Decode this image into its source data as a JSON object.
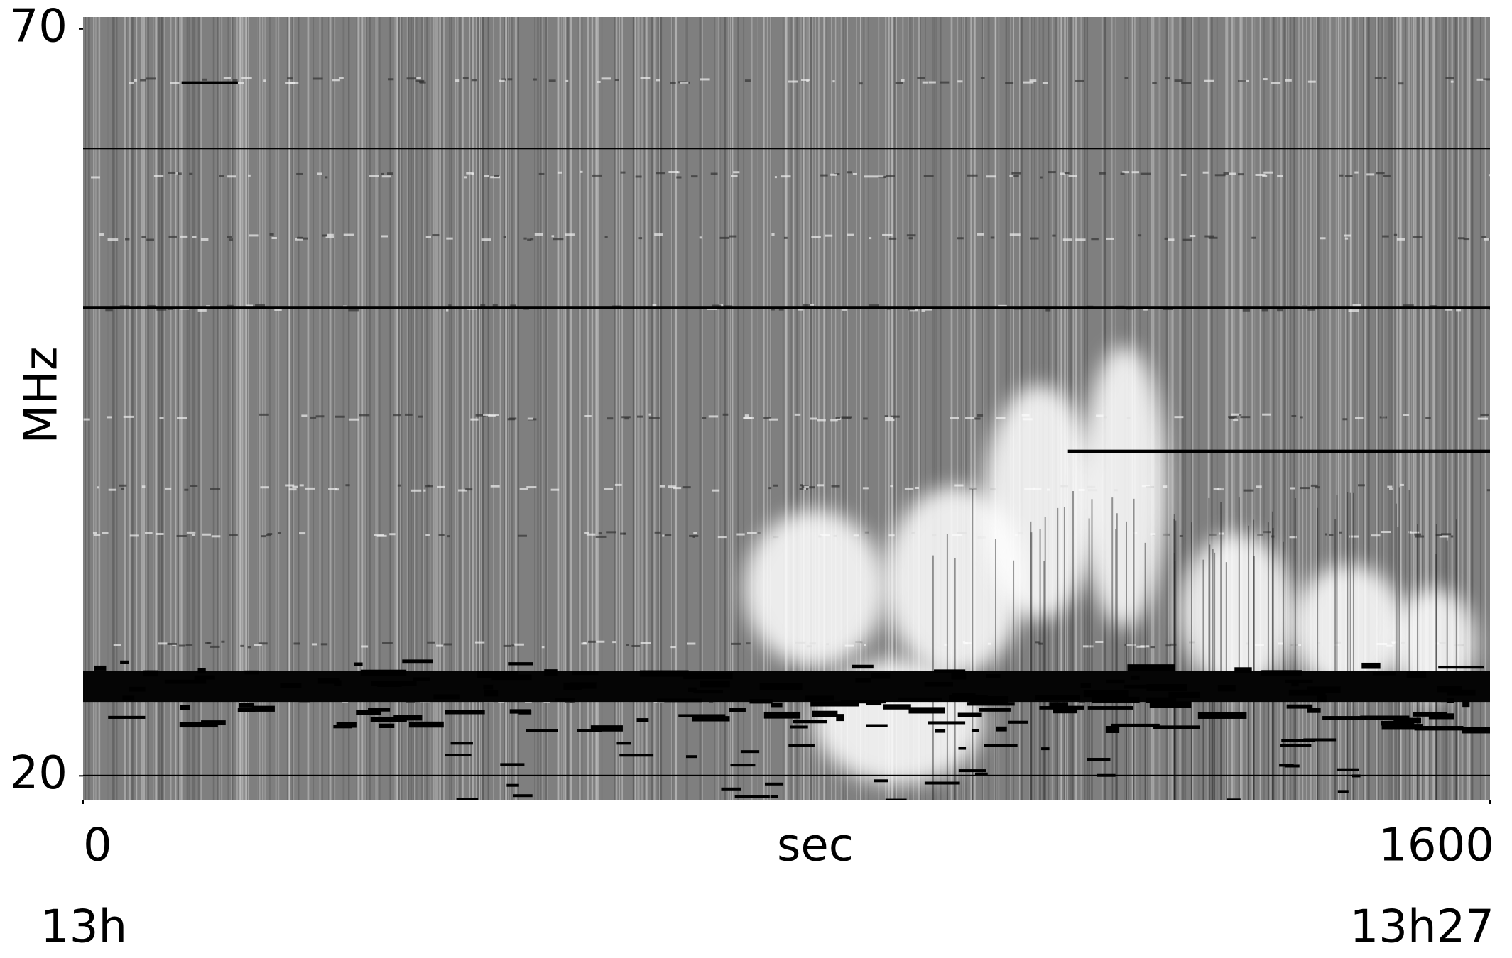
{
  "chart_data": {
    "type": "spectrogram",
    "xlabel": "sec",
    "ylabel": "MHz",
    "xlim": [
      0,
      1600
    ],
    "xticks": [
      0,
      1600
    ],
    "ylim": [
      18.4,
      70.8
    ],
    "yticks": [
      70,
      20
    ],
    "time_ticks": [
      {
        "value": 0,
        "label": "13h"
      },
      {
        "value": 1600,
        "label": "13h27"
      }
    ],
    "colormap": "gray"
  }
}
